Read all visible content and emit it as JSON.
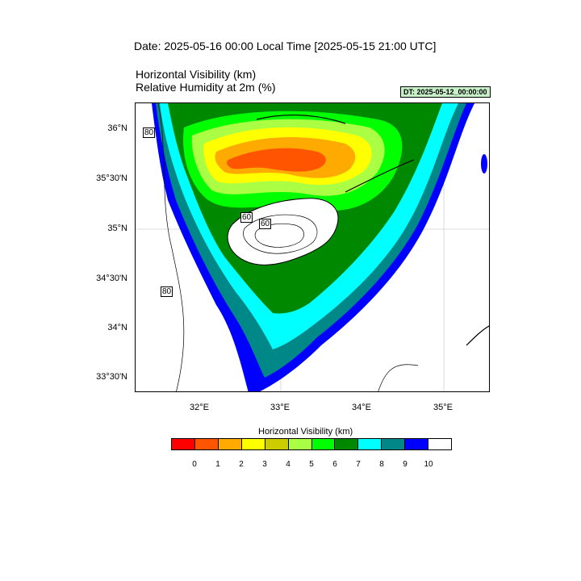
{
  "header": {
    "date_title": "Date: 2025-05-16  00:00 Local Time [2025-05-15  21:00 UTC]",
    "variable_title_1": "Horizontal Visibility   (km)",
    "variable_title_2": "Relative Humidity at 2m   (%)",
    "dt_badge": "DT: 2025-05-12_00:00:00"
  },
  "map": {
    "latitude_labels": [
      "36°N",
      "35°30'N",
      "35°N",
      "34°30'N",
      "34°N",
      "33°30'N"
    ],
    "longitude_labels": [
      "32°E",
      "33°E",
      "34°E",
      "35°E"
    ],
    "contour_labels": [
      "80",
      "80",
      "60",
      "60"
    ]
  },
  "colorbar": {
    "title": "Horizontal Visibility  (km)",
    "colors": [
      "#ff0000",
      "#ff5500",
      "#ffaa00",
      "#ffff00",
      "#cccc00",
      "#aaff44",
      "#00ff00",
      "#008800",
      "#00ffff",
      "#008888",
      "#0000ff",
      "#ffffff"
    ],
    "tick_labels": [
      "0",
      "1",
      "2",
      "3",
      "4",
      "5",
      "6",
      "7",
      "8",
      "9",
      "10"
    ]
  }
}
